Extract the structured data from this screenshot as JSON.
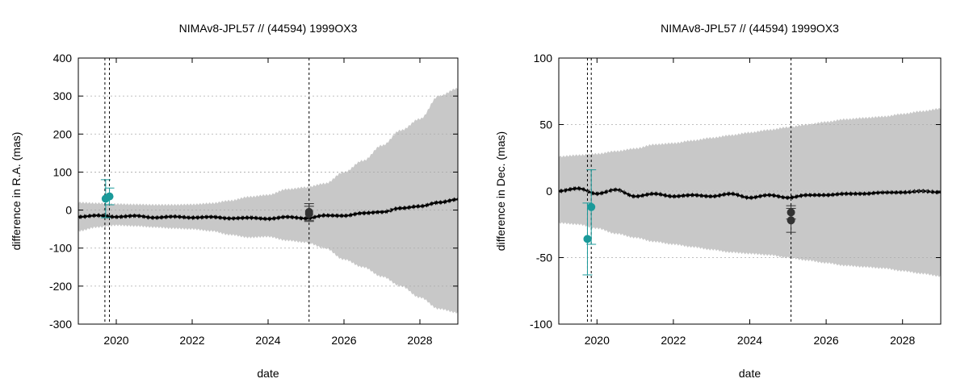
{
  "chart_data": [
    {
      "type": "line",
      "title": "NIMAv8-JPL57 // (44594) 1999OX3",
      "xlabel": "date",
      "ylabel": "difference in R.A. (mas)",
      "xlim": [
        2019.0,
        2029.0
      ],
      "ylim": [
        -300,
        400
      ],
      "xticks": [
        2020,
        2022,
        2024,
        2026,
        2028
      ],
      "yticks": [
        -300,
        -200,
        -100,
        0,
        100,
        200,
        300,
        400
      ],
      "grid": true,
      "colors": {
        "band": "#c8c8c8",
        "line": "#000000",
        "obs_old": "#1a9a9a",
        "obs_new": "#333333",
        "grid": "#aaaaaa"
      },
      "vlines": [
        2019.7,
        2019.82,
        2025.08
      ],
      "uncertainty_band": {
        "x": [
          2019.0,
          2019.5,
          2020.0,
          2020.5,
          2021.0,
          2021.5,
          2022.0,
          2022.5,
          2023.0,
          2023.5,
          2024.0,
          2024.5,
          2025.0,
          2025.5,
          2026.0,
          2026.5,
          2027.0,
          2027.5,
          2028.0,
          2028.5,
          2029.0
        ],
        "upper": [
          20,
          18,
          16,
          15,
          14,
          14,
          15,
          18,
          25,
          35,
          40,
          55,
          60,
          70,
          100,
          130,
          170,
          210,
          240,
          300,
          320
        ],
        "lower": [
          -55,
          -45,
          -40,
          -42,
          -45,
          -48,
          -50,
          -55,
          -65,
          -72,
          -70,
          -80,
          -85,
          -100,
          -130,
          -150,
          -175,
          -200,
          -230,
          -260,
          -270
        ]
      },
      "mean_curve": {
        "x": [
          2019.0,
          2019.5,
          2020.0,
          2020.5,
          2021.0,
          2021.5,
          2022.0,
          2022.5,
          2023.0,
          2023.5,
          2024.0,
          2024.5,
          2025.0,
          2025.5,
          2026.0,
          2026.5,
          2027.0,
          2027.5,
          2028.0,
          2028.5,
          2029.0
        ],
        "y": [
          -18,
          -14,
          -18,
          -15,
          -20,
          -17,
          -20,
          -18,
          -22,
          -20,
          -23,
          -18,
          -22,
          -14,
          -15,
          -8,
          -5,
          5,
          10,
          20,
          28
        ]
      },
      "observations": [
        {
          "x": 2019.72,
          "y": 30,
          "err": 50,
          "group": "old"
        },
        {
          "x": 2019.82,
          "y": 36,
          "err": 22,
          "group": "old"
        },
        {
          "x": 2025.08,
          "y": -5,
          "err": 22,
          "group": "new"
        },
        {
          "x": 2025.08,
          "y": -10,
          "err": 20,
          "group": "new"
        }
      ]
    },
    {
      "type": "line",
      "title": "NIMAv8-JPL57 // (44594) 1999OX3",
      "xlabel": "date",
      "ylabel": "difference in Dec. (mas)",
      "xlim": [
        2019.0,
        2029.0
      ],
      "ylim": [
        -100,
        100
      ],
      "xticks": [
        2020,
        2022,
        2024,
        2026,
        2028
      ],
      "yticks": [
        -100,
        -50,
        0,
        50,
        100
      ],
      "grid": true,
      "colors": {
        "band": "#c8c8c8",
        "line": "#000000",
        "obs_old": "#1a9a9a",
        "obs_new": "#333333",
        "grid": "#aaaaaa"
      },
      "vlines": [
        2019.75,
        2019.85,
        2025.08
      ],
      "uncertainty_band": {
        "x": [
          2019.0,
          2019.5,
          2020.0,
          2020.5,
          2021.0,
          2021.5,
          2022.0,
          2022.5,
          2023.0,
          2023.5,
          2024.0,
          2024.5,
          2025.0,
          2025.5,
          2026.0,
          2026.5,
          2027.0,
          2027.5,
          2028.0,
          2028.5,
          2029.0
        ],
        "upper": [
          26,
          27,
          28,
          30,
          32,
          35,
          36,
          38,
          40,
          42,
          44,
          46,
          48,
          50,
          52,
          54,
          55,
          56,
          58,
          60,
          62
        ],
        "lower": [
          -24,
          -25,
          -28,
          -32,
          -35,
          -38,
          -40,
          -42,
          -44,
          -46,
          -47,
          -48,
          -50,
          -52,
          -54,
          -56,
          -57,
          -58,
          -60,
          -62,
          -64
        ]
      },
      "mean_curve": {
        "x": [
          2019.0,
          2019.5,
          2020.0,
          2020.5,
          2021.0,
          2021.5,
          2022.0,
          2022.5,
          2023.0,
          2023.5,
          2024.0,
          2024.5,
          2025.0,
          2025.5,
          2026.0,
          2026.5,
          2027.0,
          2027.5,
          2028.0,
          2028.5,
          2029.0
        ],
        "y": [
          0,
          2,
          -2,
          1,
          -4,
          -2,
          -4,
          -3,
          -4,
          -2,
          -5,
          -3,
          -5,
          -3,
          -3,
          -2,
          -2,
          -1,
          -1,
          0,
          -1
        ]
      },
      "observations": [
        {
          "x": 2019.75,
          "y": -36,
          "err": 27,
          "group": "old"
        },
        {
          "x": 2019.85,
          "y": -12,
          "err": 28,
          "group": "old"
        },
        {
          "x": 2025.08,
          "y": -16,
          "err": 5,
          "group": "new"
        },
        {
          "x": 2025.08,
          "y": -22,
          "err": 9,
          "group": "new"
        }
      ]
    }
  ]
}
